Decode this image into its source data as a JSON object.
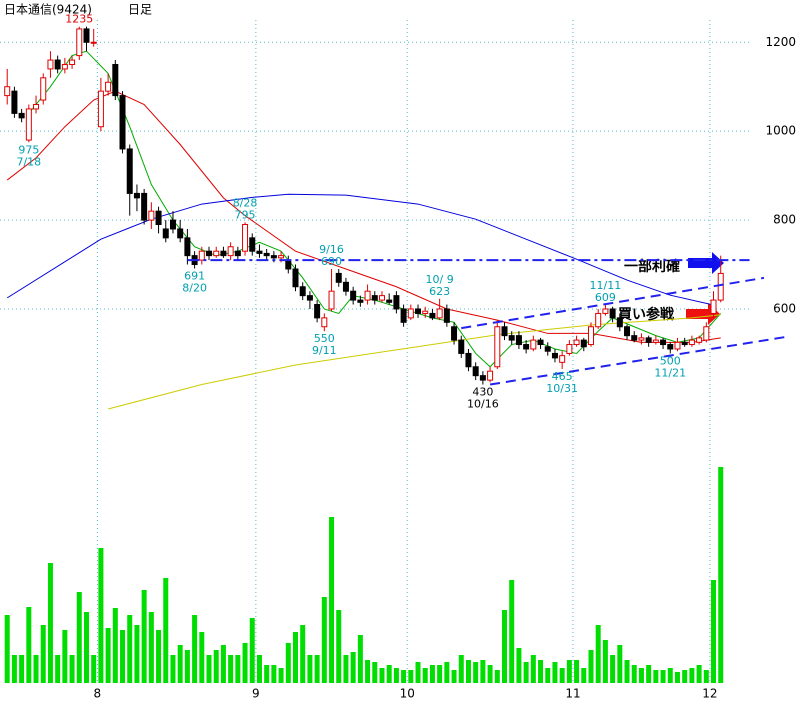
{
  "chart_data": {
    "type": "candlestick",
    "title": "日本通信(9424)",
    "subtitle": "日足",
    "xlim": [
      -1,
      110
    ],
    "ylim": [
      330,
      1280
    ],
    "vlim": [
      0,
      240
    ],
    "yticks": [
      600,
      800,
      1000,
      1200
    ],
    "xticks": [
      {
        "value": 12.5,
        "label": "8"
      },
      {
        "value": 34.5,
        "label": "9"
      },
      {
        "value": 55.5,
        "label": "10"
      },
      {
        "value": 78.5,
        "label": "11"
      },
      {
        "value": 97.5,
        "label": "12"
      }
    ],
    "grid": true,
    "up_color": "#e00000",
    "down_color": "#000000",
    "volume_color": "#00dd00",
    "open": [
      1080,
      1090,
      1040,
      980,
      1050,
      1070,
      1140,
      1160,
      1140,
      1150,
      1170,
      1230,
      1200,
      1010,
      1090,
      1150,
      1080,
      960,
      860,
      860,
      800,
      820,
      780,
      800,
      780,
      760,
      720,
      710,
      730,
      720,
      730,
      720,
      730,
      730,
      760,
      730,
      725,
      720,
      715,
      710,
      690,
      650,
      630,
      610,
      560,
      600,
      680,
      660,
      640,
      620,
      620,
      630,
      620,
      620,
      630,
      600,
      580,
      600,
      590,
      590,
      580,
      600,
      560,
      530,
      500,
      470,
      450,
      440,
      470,
      560,
      540,
      540,
      520,
      510,
      530,
      515,
      500,
      480,
      500,
      520,
      530,
      520,
      560,
      590,
      600,
      580,
      560,
      540,
      530,
      535,
      525,
      530,
      520,
      510,
      525,
      520,
      525,
      530,
      590,
      620
    ],
    "high": [
      1140,
      1100,
      1050,
      1060,
      1080,
      1130,
      1180,
      1170,
      1165,
      1170,
      1235,
      1235,
      1230,
      1120,
      1130,
      1160,
      1090,
      970,
      880,
      870,
      840,
      830,
      800,
      820,
      800,
      780,
      730,
      740,
      740,
      740,
      740,
      750,
      740,
      795,
      770,
      745,
      735,
      730,
      730,
      720,
      700,
      660,
      640,
      620,
      590,
      690,
      690,
      670,
      650,
      630,
      655,
      640,
      640,
      635,
      640,
      610,
      610,
      610,
      605,
      600,
      623,
      610,
      570,
      540,
      510,
      480,
      460,
      470,
      575,
      570,
      550,
      550,
      530,
      540,
      535,
      525,
      510,
      505,
      530,
      540,
      535,
      570,
      600,
      609,
      605,
      590,
      565,
      550,
      545,
      540,
      540,
      535,
      525,
      535,
      535,
      540,
      540,
      570,
      640,
      720
    ],
    "low": [
      1060,
      1030,
      1020,
      975,
      1040,
      1060,
      1120,
      1130,
      1130,
      1140,
      1160,
      1180,
      1190,
      1000,
      1080,
      1070,
      950,
      810,
      820,
      790,
      780,
      770,
      750,
      770,
      750,
      700,
      691,
      700,
      710,
      715,
      715,
      710,
      710,
      720,
      720,
      715,
      710,
      705,
      705,
      680,
      640,
      620,
      600,
      570,
      550,
      595,
      650,
      630,
      610,
      605,
      610,
      610,
      615,
      610,
      590,
      560,
      575,
      580,
      580,
      575,
      575,
      560,
      520,
      490,
      460,
      440,
      430,
      435,
      465,
      530,
      520,
      510,
      500,
      505,
      510,
      495,
      480,
      465,
      495,
      515,
      505,
      515,
      555,
      585,
      570,
      550,
      530,
      525,
      520,
      515,
      520,
      510,
      500,
      505,
      515,
      515,
      520,
      525,
      580,
      615
    ],
    "close": [
      1100,
      1040,
      1030,
      1050,
      1060,
      1120,
      1160,
      1140,
      1150,
      1160,
      1230,
      1200,
      1200,
      1090,
      1110,
      1080,
      960,
      860,
      850,
      800,
      820,
      790,
      760,
      780,
      760,
      720,
      700,
      730,
      720,
      730,
      720,
      740,
      720,
      790,
      730,
      725,
      720,
      715,
      720,
      690,
      650,
      630,
      620,
      580,
      580,
      640,
      660,
      640,
      620,
      615,
      640,
      620,
      630,
      615,
      600,
      570,
      600,
      590,
      595,
      580,
      600,
      570,
      530,
      500,
      470,
      450,
      440,
      460,
      560,
      540,
      530,
      520,
      510,
      530,
      520,
      505,
      490,
      495,
      520,
      530,
      515,
      560,
      590,
      600,
      580,
      560,
      540,
      530,
      535,
      525,
      530,
      520,
      510,
      525,
      520,
      530,
      535,
      560,
      620,
      680
    ],
    "volume": [
      68,
      28,
      28,
      76,
      28,
      58,
      120,
      28,
      53,
      28,
      91,
      71,
      28,
      135,
      55,
      75,
      53,
      68,
      58,
      93,
      71,
      53,
      105,
      28,
      38,
      33,
      68,
      51,
      28,
      33,
      38,
      28,
      28,
      40,
      65,
      28,
      18,
      18,
      15,
      40,
      51,
      58,
      28,
      28,
      86,
      166,
      73,
      28,
      31,
      48,
      23,
      21,
      15,
      18,
      15,
      13,
      13,
      21,
      15,
      18,
      18,
      21,
      13,
      28,
      23,
      21,
      23,
      18,
      13,
      73,
      103,
      35,
      21,
      28,
      23,
      15,
      21,
      15,
      23,
      23,
      15,
      33,
      58,
      43,
      28,
      38,
      23,
      18,
      15,
      18,
      13,
      13,
      15,
      11,
      13,
      15,
      18,
      13,
      103,
      216
    ],
    "lines": [
      {
        "color": "#00aa00",
        "x": [
          3,
          6,
          9,
          11,
          14,
          17,
          20,
          23,
          26,
          29,
          32,
          35,
          38,
          41,
          44,
          46,
          48,
          51,
          55,
          59,
          62,
          65,
          67,
          70,
          73,
          76,
          79,
          82,
          84,
          87,
          90,
          93,
          96,
          99
        ],
        "values": [
          1040,
          1100,
          1170,
          1180,
          1130,
          1010,
          880,
          800,
          740,
          720,
          730,
          750,
          730,
          670,
          600,
          590,
          630,
          620,
          600,
          580,
          570,
          500,
          470,
          520,
          530,
          510,
          500,
          550,
          580,
          560,
          540,
          525,
          535,
          590
        ]
      },
      {
        "color": "#e00000",
        "x": [
          0,
          4,
          8,
          12,
          15,
          19,
          24,
          30,
          33,
          40,
          47,
          54,
          61,
          68,
          75,
          81,
          88,
          95,
          99
        ],
        "values": [
          890,
          940,
          1010,
          1070,
          1090,
          1060,
          970,
          850,
          810,
          730,
          690,
          650,
          600,
          575,
          545,
          545,
          525,
          525,
          535
        ]
      },
      {
        "color": "#0000dd",
        "x": [
          0,
          13,
          20,
          27,
          34,
          39,
          47,
          57,
          65,
          72,
          79,
          86,
          92,
          98
        ],
        "values": [
          625,
          757,
          802,
          836,
          851,
          858,
          856,
          836,
          802,
          757,
          712,
          665,
          631,
          609
        ]
      },
      {
        "color": "#cccc00",
        "x": [
          14,
          27,
          40,
          54,
          68,
          81,
          95,
          99
        ],
        "values": [
          375,
          430,
          474,
          508,
          542,
          564,
          580,
          587
        ]
      }
    ],
    "trendlines": [
      {
        "color": "#2222ee",
        "style": "dashdot",
        "x": [
          25,
          103
        ],
        "values": [
          710,
          710
        ]
      },
      {
        "color": "#2222ee",
        "style": "dashed",
        "x": [
          63,
          105
        ],
        "values": [
          557,
          670
        ]
      },
      {
        "color": "#2222ee",
        "style": "dashed",
        "x": [
          67,
          108
        ],
        "values": [
          430,
          537
        ]
      }
    ],
    "annotations": [
      {
        "x": 3,
        "value": 975,
        "label": "7/18",
        "color": "#00a0b0",
        "pos": "below"
      },
      {
        "x": 10,
        "value": 1235,
        "color": "#e00000",
        "pos": "above"
      },
      {
        "x": 26,
        "value": 691,
        "label": "8/20",
        "color": "#00a0b0",
        "pos": "below"
      },
      {
        "x": 33,
        "value": 795,
        "label": "8/28",
        "color": "#00a0b0",
        "pos": "above"
      },
      {
        "x": 44,
        "value": 550,
        "label": "9/11",
        "color": "#00a0b0",
        "pos": "below"
      },
      {
        "x": 45,
        "value": 690,
        "label": "9/16",
        "color": "#00a0b0",
        "pos": "above"
      },
      {
        "x": 60,
        "value": 623,
        "label": "10/ 9",
        "color": "#00a0b0",
        "pos": "above"
      },
      {
        "x": 66,
        "value": 430,
        "label": "10/16",
        "color": "#000000",
        "pos": "below"
      },
      {
        "x": 77,
        "value": 465,
        "label": "10/31",
        "color": "#00a0b0",
        "pos": "below"
      },
      {
        "x": 83,
        "value": 609,
        "label": "11/11",
        "color": "#00a0b0",
        "pos": "above"
      },
      {
        "x": 92,
        "value": 500,
        "label": "11/21",
        "color": "#00a0b0",
        "pos": "below"
      }
    ],
    "callouts": [
      "一部利確",
      "買い参戦"
    ]
  }
}
